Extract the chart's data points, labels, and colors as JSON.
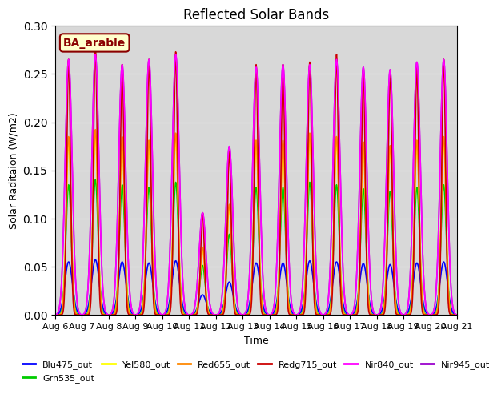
{
  "title": "Reflected Solar Bands",
  "xlabel": "Time",
  "ylabel": "Solar Raditaion (W/m2)",
  "annotation": "BA_arable",
  "ylim": [
    0.0,
    0.3
  ],
  "n_days": 15,
  "background_color": "#d8d8d8",
  "series": [
    {
      "name": "Blu475_out",
      "color": "#0000ff",
      "peak": 0.055,
      "sigma": 0.14
    },
    {
      "name": "Grn535_out",
      "color": "#00cc00",
      "peak": 0.135,
      "sigma": 0.1
    },
    {
      "name": "Yel580_out",
      "color": "#ffff00",
      "peak": 0.178,
      "sigma": 0.09
    },
    {
      "name": "Red655_out",
      "color": "#ff8800",
      "peak": 0.185,
      "sigma": 0.088
    },
    {
      "name": "Redg715_out",
      "color": "#cc0000",
      "peak": 0.265,
      "sigma": 0.07
    },
    {
      "name": "Nir840_out",
      "color": "#ff00ff",
      "peak": 0.265,
      "sigma": 0.13
    },
    {
      "name": "Nir945_out",
      "color": "#9900cc",
      "peak": 0.265,
      "sigma": 0.13
    }
  ],
  "tick_labels": [
    "Aug 6",
    "Aug 7",
    "Aug 8",
    "Aug 9",
    "Aug 10",
    "Aug 11",
    "Aug 12",
    "Aug 13",
    "Aug 14",
    "Aug 15",
    "Aug 16",
    "Aug 17",
    "Aug 18",
    "Aug 19",
    "Aug 20",
    "Aug 21"
  ],
  "day_var_base": [
    1.0,
    1.04,
    1.0,
    0.98,
    1.02,
    0.38,
    0.62,
    0.98,
    0.98,
    1.02,
    1.0,
    0.97,
    0.95,
    0.98,
    1.0
  ],
  "day_var_red": [
    1.0,
    1.05,
    0.98,
    1.0,
    1.03,
    0.4,
    0.64,
    0.98,
    0.98,
    0.99,
    1.02,
    0.96,
    0.95,
    0.97,
    1.0
  ],
  "day_var_nir": [
    1.0,
    1.02,
    0.98,
    1.0,
    1.02,
    0.4,
    0.66,
    0.97,
    0.98,
    0.98,
    1.0,
    0.97,
    0.96,
    0.99,
    1.0
  ],
  "grid_color": "#ffffff",
  "figsize": [
    6.4,
    4.8
  ],
  "dpi": 100
}
